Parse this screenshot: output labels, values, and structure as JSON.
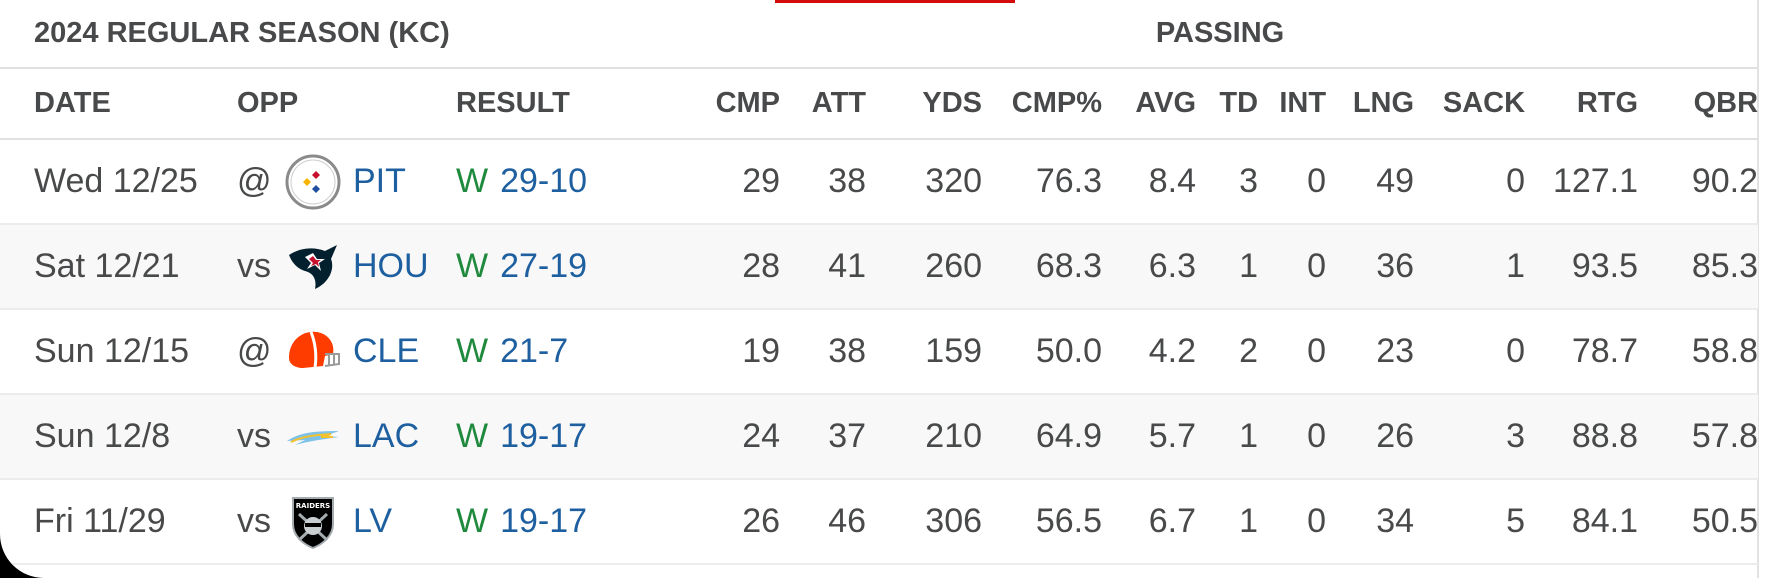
{
  "table": {
    "season_title": "2024 REGULAR SEASON (KC)",
    "section_title": "PASSING",
    "columns": [
      "DATE",
      "OPP",
      "RESULT",
      "CMP",
      "ATT",
      "YDS",
      "CMP%",
      "AVG",
      "TD",
      "INT",
      "LNG",
      "SACK",
      "RTG",
      "QBR"
    ],
    "rows": [
      {
        "date": "Wed 12/25",
        "prefix": "@",
        "team": "PIT",
        "logo_icon": "steelers-logo-icon",
        "result": "W",
        "score": "29-10",
        "stats": [
          "29",
          "38",
          "320",
          "76.3",
          "8.4",
          "3",
          "0",
          "49",
          "0",
          "127.1",
          "90.2"
        ]
      },
      {
        "date": "Sat 12/21",
        "prefix": "vs",
        "team": "HOU",
        "logo_icon": "texans-logo-icon",
        "result": "W",
        "score": "27-19",
        "stats": [
          "28",
          "41",
          "260",
          "68.3",
          "6.3",
          "1",
          "0",
          "36",
          "1",
          "93.5",
          "85.3"
        ]
      },
      {
        "date": "Sun 12/15",
        "prefix": "@",
        "team": "CLE",
        "logo_icon": "browns-helmet-logo-icon",
        "result": "W",
        "score": "21-7",
        "stats": [
          "19",
          "38",
          "159",
          "50.0",
          "4.2",
          "2",
          "0",
          "23",
          "0",
          "78.7",
          "58.8"
        ]
      },
      {
        "date": "Sun 12/8",
        "prefix": "vs",
        "team": "LAC",
        "logo_icon": "chargers-bolt-logo-icon",
        "result": "W",
        "score": "19-17",
        "stats": [
          "24",
          "37",
          "210",
          "64.9",
          "5.7",
          "1",
          "0",
          "26",
          "3",
          "88.8",
          "57.8"
        ]
      },
      {
        "date": "Fri 11/29",
        "prefix": "vs",
        "team": "LV",
        "logo_icon": "raiders-shield-logo-icon",
        "result": "W",
        "score": "19-17",
        "stats": [
          "26",
          "46",
          "306",
          "56.5",
          "6.7",
          "1",
          "0",
          "34",
          "5",
          "84.1",
          "50.5"
        ]
      }
    ]
  },
  "logos": {
    "steelers_text": "",
    "raiders_text": "RAIDERS"
  },
  "colors": {
    "link": "#1e5fa0",
    "win": "#1f8a3d",
    "text": "#48494a",
    "accent": "#d50a0a"
  }
}
